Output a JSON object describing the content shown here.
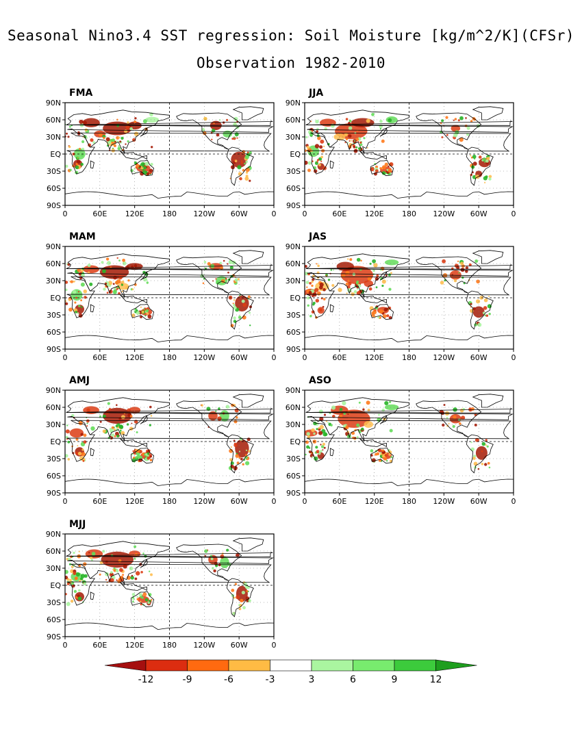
{
  "title": {
    "line1": "Seasonal Nino3.4 SST regression: Soil Moisture [kg/m^2/K](CFSr)",
    "line2": "Observation 1982-2010"
  },
  "panels": [
    {
      "label": "FMA"
    },
    {
      "label": "JJA"
    },
    {
      "label": "MAM"
    },
    {
      "label": "JAS"
    },
    {
      "label": "AMJ"
    },
    {
      "label": "ASO"
    },
    {
      "label": "MJJ"
    }
  ],
  "axes": {
    "lat_ticks": [
      "90N",
      "60N",
      "30N",
      "EQ",
      "30S",
      "60S",
      "90S"
    ],
    "lon_ticks": [
      "0",
      "60E",
      "120E",
      "180",
      "120W",
      "60W",
      "0"
    ]
  },
  "colorbar": {
    "ticks": [
      "-12",
      "-9",
      "-6",
      "-3",
      "3",
      "6",
      "9",
      "12"
    ],
    "colors": [
      "#a50f0f",
      "#dc2d10",
      "#ff6a10",
      "#ffbb44",
      "#ffffff",
      "#aaf5a0",
      "#78eb6e",
      "#3ccb3c",
      "#1e9e1e"
    ]
  },
  "colors": {
    "strong_negative": "#a51a05",
    "negative": "#dc3c14",
    "moderate_negative": "#ff7a1c",
    "weak_negative": "#ffbe50",
    "weak_positive": "#aaf5a0",
    "positive": "#64dc5a",
    "strong_positive": "#28b428"
  }
}
